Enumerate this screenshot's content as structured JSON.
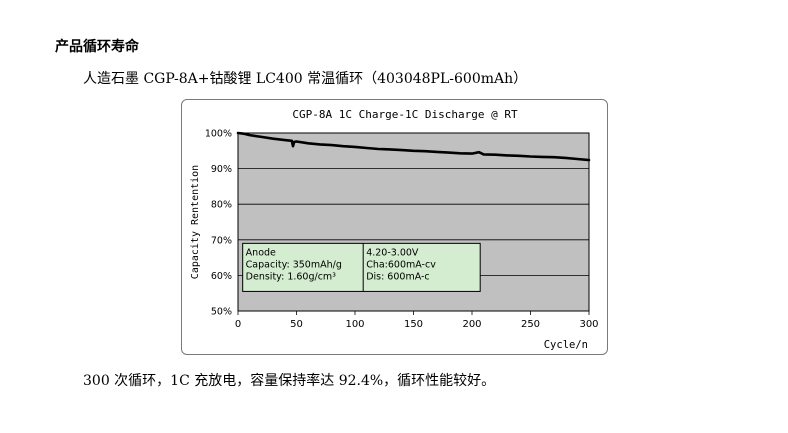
{
  "section": {
    "heading": "产品循环寿命",
    "subtitle": "人造石墨 CGP-8A+钴酸锂 LC400 常温循环（403048PL-600mAh）",
    "conclusion": "300 次循环，1C 充放电，容量保持率达 92.4%，循环性能较好。"
  },
  "chart_data": {
    "type": "line",
    "title": "CGP-8A  1C Charge-1C Discharge @ RT",
    "xlabel": "Cycle/n",
    "ylabel": "Capacity Rentention",
    "xlim": [
      0,
      300
    ],
    "ylim": [
      50,
      100
    ],
    "x_ticks": [
      0,
      50,
      100,
      150,
      200,
      250,
      300
    ],
    "y_ticks": [
      50,
      60,
      70,
      80,
      90,
      100
    ],
    "y_tick_labels": [
      "50%",
      "60%",
      "70%",
      "80%",
      "90%",
      "100%"
    ],
    "grid": "horizontal",
    "plot_background": "#c0c0c0",
    "line_color": "#000000",
    "series": [
      {
        "x": [
          0,
          5,
          10,
          20,
          30,
          40,
          46,
          47,
          48,
          50,
          60,
          70,
          80,
          90,
          100,
          110,
          120,
          130,
          140,
          150,
          160,
          170,
          180,
          190,
          200,
          206,
          210,
          220,
          230,
          240,
          250,
          260,
          270,
          280,
          290,
          300
        ],
        "values": [
          100,
          99.8,
          99.4,
          98.9,
          98.4,
          98.0,
          97.8,
          96.3,
          97.5,
          97.6,
          97.1,
          96.8,
          96.6,
          96.3,
          96.1,
          95.8,
          95.5,
          95.4,
          95.2,
          95.0,
          94.9,
          94.7,
          94.5,
          94.3,
          94.2,
          94.6,
          94.0,
          93.9,
          93.7,
          93.6,
          93.4,
          93.3,
          93.2,
          93.0,
          92.7,
          92.4
        ]
      }
    ],
    "annotation_box": {
      "background": "#d4ecd0",
      "left_lines": [
        "Anode",
        "Capacity: 350mAh/g",
        "Density: 1.60g/cm³"
      ],
      "right_lines": [
        "4.20-3.00V",
        "Cha:600mA-cv",
        "Dis: 600mA-c"
      ]
    }
  }
}
